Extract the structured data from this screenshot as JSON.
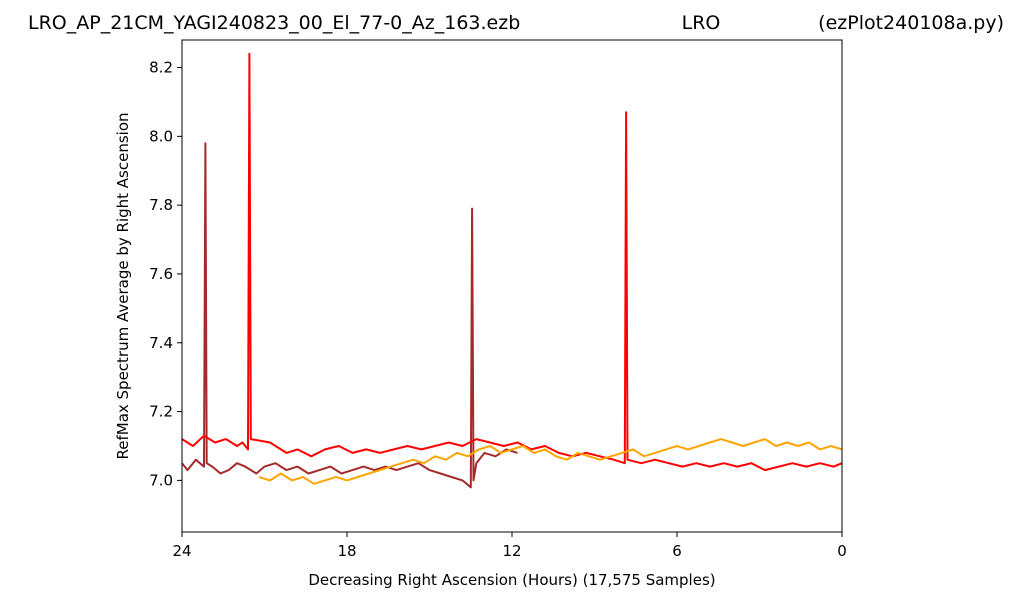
{
  "chart_data": {
    "type": "line",
    "title_left": "LRO_AP_21CM_YAGI240823_00_El_77-0_Az_163.ezb",
    "title_center": "LRO",
    "title_right": "(ezPlot240108a.py)",
    "xlabel": "Decreasing Right Ascension (Hours) (17,575 Samples)",
    "ylabel": "RefMax Spectrum Average by Right Ascension",
    "xlim": [
      24,
      0
    ],
    "ylim": [
      6.85,
      8.28
    ],
    "x_ticks": [
      24,
      18,
      12,
      6,
      0
    ],
    "x_tick_labels": [
      "24",
      "18",
      "12",
      "6",
      "0"
    ],
    "y_ticks": [
      7.0,
      7.2,
      7.4,
      7.6,
      7.8,
      8.0,
      8.2
    ],
    "y_tick_labels": [
      "7.0",
      "7.2",
      "7.4",
      "7.6",
      "7.8",
      "8.0",
      "8.2"
    ],
    "grid": false,
    "series": [
      {
        "color": "#a52a2a",
        "x": [
          24.0,
          23.8,
          23.5,
          23.2,
          23.15,
          23.1,
          22.9,
          22.6,
          22.3,
          22.0,
          21.7,
          21.3,
          21.0,
          20.6,
          20.2,
          19.8,
          19.4,
          19.0,
          18.6,
          18.2,
          17.8,
          17.4,
          17.0,
          16.6,
          16.2,
          15.8,
          15.4,
          15.0,
          14.6,
          14.2,
          13.8,
          13.5,
          13.45,
          13.4,
          13.3,
          13.0,
          12.6,
          12.2,
          11.8
        ],
        "y": [
          7.05,
          7.03,
          7.06,
          7.04,
          7.98,
          7.05,
          7.04,
          7.02,
          7.03,
          7.05,
          7.04,
          7.02,
          7.04,
          7.05,
          7.03,
          7.04,
          7.02,
          7.03,
          7.04,
          7.02,
          7.03,
          7.04,
          7.03,
          7.04,
          7.03,
          7.04,
          7.05,
          7.03,
          7.02,
          7.01,
          7.0,
          6.98,
          7.79,
          7.0,
          7.05,
          7.08,
          7.07,
          7.09,
          7.08
        ]
      },
      {
        "color": "#ff0000",
        "x": [
          24.0,
          23.6,
          23.2,
          22.8,
          22.4,
          22.0,
          21.8,
          21.6,
          21.55,
          21.5,
          20.8,
          20.2,
          19.8,
          19.3,
          18.8,
          18.3,
          17.8,
          17.3,
          16.8,
          16.3,
          15.8,
          15.3,
          14.8,
          14.3,
          13.8,
          13.3,
          12.8,
          12.3,
          11.8,
          11.3,
          10.8,
          10.3,
          9.8,
          9.3,
          8.8,
          8.3,
          7.9,
          7.85,
          7.8,
          7.3,
          6.8,
          6.3,
          5.8,
          5.3,
          4.8,
          4.3,
          3.8,
          3.3,
          2.8,
          2.3,
          1.8,
          1.3,
          0.8,
          0.3,
          0.0
        ],
        "y": [
          7.12,
          7.1,
          7.13,
          7.11,
          7.12,
          7.1,
          7.11,
          7.09,
          8.24,
          7.12,
          7.11,
          7.08,
          7.09,
          7.07,
          7.09,
          7.1,
          7.08,
          7.09,
          7.08,
          7.09,
          7.1,
          7.09,
          7.1,
          7.11,
          7.1,
          7.12,
          7.11,
          7.1,
          7.11,
          7.09,
          7.1,
          7.08,
          7.07,
          7.08,
          7.07,
          7.06,
          7.05,
          8.07,
          7.06,
          7.05,
          7.06,
          7.05,
          7.04,
          7.05,
          7.04,
          7.05,
          7.04,
          7.05,
          7.03,
          7.04,
          7.05,
          7.04,
          7.05,
          7.04,
          7.05
        ]
      },
      {
        "color": "#ffa500",
        "x": [
          21.2,
          20.8,
          20.4,
          20.0,
          19.6,
          19.2,
          18.8,
          18.4,
          18.0,
          17.6,
          17.2,
          16.8,
          16.4,
          16.0,
          15.6,
          15.2,
          14.8,
          14.4,
          14.0,
          13.6,
          13.2,
          12.8,
          12.4,
          12.0,
          11.6,
          11.2,
          10.8,
          10.4,
          10.0,
          9.6,
          9.2,
          8.8,
          8.4,
          8.0,
          7.6,
          7.2,
          6.8,
          6.4,
          6.0,
          5.6,
          5.2,
          4.8,
          4.4,
          4.0,
          3.6,
          3.2,
          2.8,
          2.4,
          2.0,
          1.6,
          1.2,
          0.8,
          0.4,
          0.0
        ],
        "y": [
          7.01,
          7.0,
          7.02,
          7.0,
          7.01,
          6.99,
          7.0,
          7.01,
          7.0,
          7.01,
          7.02,
          7.03,
          7.04,
          7.05,
          7.06,
          7.05,
          7.07,
          7.06,
          7.08,
          7.07,
          7.09,
          7.1,
          7.08,
          7.09,
          7.1,
          7.08,
          7.09,
          7.07,
          7.06,
          7.08,
          7.07,
          7.06,
          7.07,
          7.08,
          7.09,
          7.07,
          7.08,
          7.09,
          7.1,
          7.09,
          7.1,
          7.11,
          7.12,
          7.11,
          7.1,
          7.11,
          7.12,
          7.1,
          7.11,
          7.1,
          7.11,
          7.09,
          7.1,
          7.09
        ]
      }
    ]
  }
}
